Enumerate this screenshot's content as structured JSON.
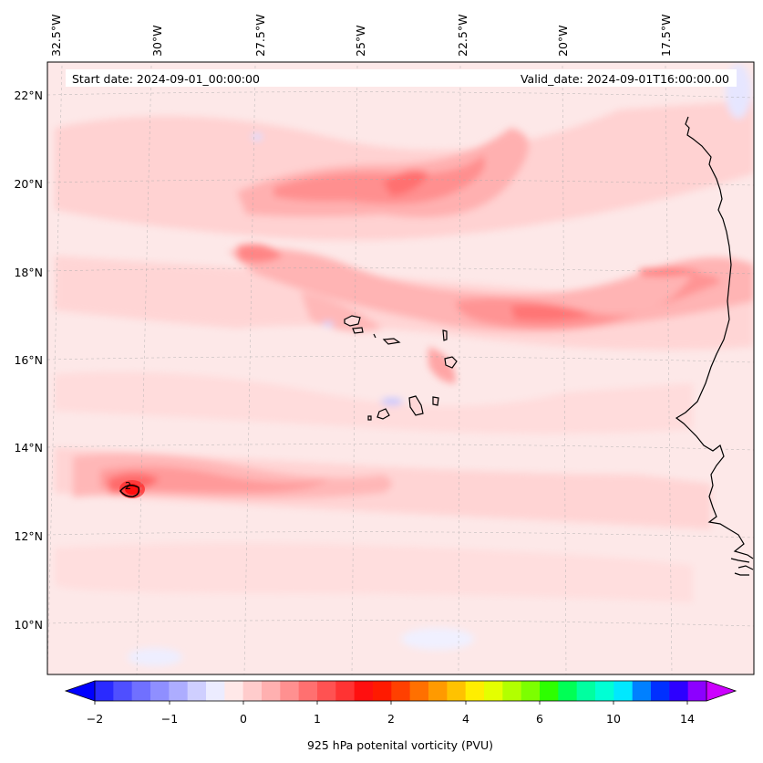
{
  "header": {
    "start_date": "Start date: 2024-09-01_00:00:00",
    "valid_date": "Valid_date: 2024-09-01T16:00:00.00"
  },
  "map": {
    "lon_labels": [
      "32.5°W",
      "30°W",
      "27.5°W",
      "25°W",
      "22.5°W",
      "20°W",
      "17.5°W"
    ],
    "lat_labels": [
      "22°N",
      "20°N",
      "18°N",
      "16°N",
      "14°N",
      "12°N",
      "10°N"
    ],
    "contour_label": "2",
    "gridlines": true,
    "background_fill": "#fde8e8"
  },
  "colorbar": {
    "title": "925 hPa potenital vorticity (PVU)",
    "ticks": [
      "−2",
      "−1",
      "0",
      "1",
      "2",
      "4",
      "6",
      "10",
      "14"
    ],
    "colors": [
      "#0000ff",
      "#2a2aff",
      "#4f4fff",
      "#7070ff",
      "#8f8fff",
      "#adadff",
      "#cfcfff",
      "#ececff",
      "#ffe8e8",
      "#ffcccc",
      "#ffb0b0",
      "#ff9090",
      "#ff7070",
      "#ff5252",
      "#ff3333",
      "#ff0f0f",
      "#ff1a00",
      "#ff4000",
      "#ff7000",
      "#ff9a00",
      "#ffc200",
      "#ffee00",
      "#e4ff00",
      "#b2ff00",
      "#7cff00",
      "#2dff00",
      "#00ff55",
      "#00ffa0",
      "#00ffd4",
      "#00e8ff",
      "#0080ff",
      "#0030ff",
      "#2d00ff",
      "#8c00ff",
      "#cc00ff"
    ],
    "extend": "both"
  }
}
